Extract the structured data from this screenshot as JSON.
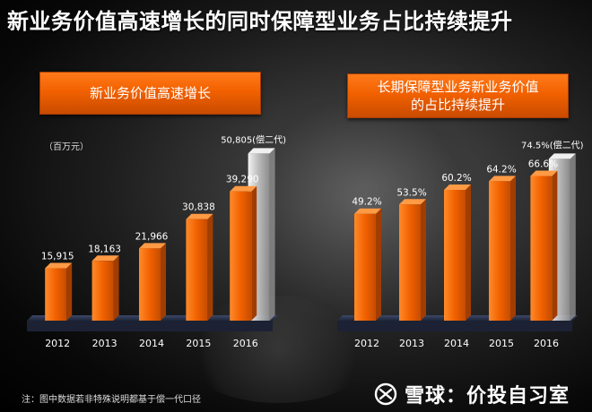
{
  "title": "新业务价值高速增长的同时保障型业务占比持续提升",
  "left_panel": {
    "header": "新业务价值高速增长",
    "unit": "（百万元）"
  },
  "right_panel": {
    "header_line1": "长期保障型业务新业务价值",
    "header_line2": "的占比持续提升"
  },
  "footnote": "注：图中数据若非特殊说明都基于偿一代口径",
  "brand": {
    "name": "雪球：价投自习室",
    "icon": "snowball-logo-icon"
  },
  "colors": {
    "orange": "#f26100",
    "silver": "#cfcfcf",
    "floor": "#2f3a57"
  },
  "chart_data": [
    {
      "type": "bar",
      "title": "新业务价值高速增长",
      "ylabel": "（百万元）",
      "categories": [
        "2012",
        "2013",
        "2014",
        "2015",
        "2016"
      ],
      "values": [
        15915,
        18163,
        21966,
        30838,
        39290
      ],
      "labels": [
        "15,915",
        "18,163",
        "21,966",
        "30,838",
        "39,290"
      ],
      "ghost": {
        "category": "2016",
        "value": 50805,
        "label": "50,805(偿二代)"
      },
      "ylim": [
        0,
        55000
      ]
    },
    {
      "type": "bar",
      "title": "长期保障型业务新业务价值的占比持续提升",
      "categories": [
        "2012",
        "2013",
        "2014",
        "2015",
        "2016"
      ],
      "values": [
        49.2,
        53.5,
        60.2,
        64.2,
        66.6
      ],
      "labels": [
        "49.2%",
        "53.5%",
        "60.2%",
        "64.2%",
        "66.6%"
      ],
      "ghost": {
        "category": "2016",
        "value": 74.5,
        "label": "74.5%(偿二代)"
      },
      "ylim": [
        0,
        80
      ]
    }
  ]
}
